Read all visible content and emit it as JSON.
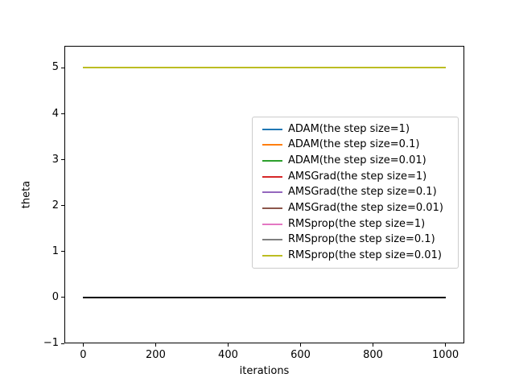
{
  "chart_data": {
    "type": "line",
    "title": "",
    "xlabel": "iterations",
    "ylabel": "theta",
    "xlim": [
      -52,
      1052
    ],
    "ylim": [
      -1,
      5.48
    ],
    "xticks": [
      0,
      200,
      400,
      600,
      800,
      1000
    ],
    "yticks": [
      5,
      4,
      3,
      2,
      1,
      0,
      -1
    ],
    "grid": false,
    "legend_position": "center right inside",
    "series": [
      {
        "name": "ADAM(the step size=1)",
        "color": "#1f77b4",
        "x": [
          0,
          1000
        ],
        "y": [
          5,
          5
        ]
      },
      {
        "name": "ADAM(the step size=0.1)",
        "color": "#ff7f0e",
        "x": [
          0,
          1000
        ],
        "y": [
          5,
          5
        ]
      },
      {
        "name": "ADAM(the step size=0.01)",
        "color": "#2ca02c",
        "x": [
          0,
          1000
        ],
        "y": [
          5,
          5
        ]
      },
      {
        "name": "AMSGrad(the step size=1)",
        "color": "#d62728",
        "x": [
          0,
          1000
        ],
        "y": [
          5,
          5
        ]
      },
      {
        "name": "AMSGrad(the step size=0.1)",
        "color": "#9467bd",
        "x": [
          0,
          1000
        ],
        "y": [
          5,
          5
        ]
      },
      {
        "name": "AMSGrad(the step size=0.01)",
        "color": "#8c564b",
        "x": [
          0,
          1000
        ],
        "y": [
          5,
          5
        ]
      },
      {
        "name": "RMSprop(the step size=1)",
        "color": "#e377c2",
        "x": [
          0,
          1000
        ],
        "y": [
          5,
          5
        ]
      },
      {
        "name": "RMSprop(the step size=0.1)",
        "color": "#7f7f7f",
        "x": [
          0,
          1000
        ],
        "y": [
          5,
          5
        ]
      },
      {
        "name": "RMSprop(the step size=0.01)",
        "color": "#bcbd22",
        "x": [
          0,
          1000
        ],
        "y": [
          5,
          5
        ]
      }
    ],
    "extra_lines": [
      {
        "name": "baseline-zero",
        "color": "#000000",
        "x": [
          0,
          1000
        ],
        "y": [
          0,
          0
        ],
        "in_legend": false
      }
    ]
  }
}
